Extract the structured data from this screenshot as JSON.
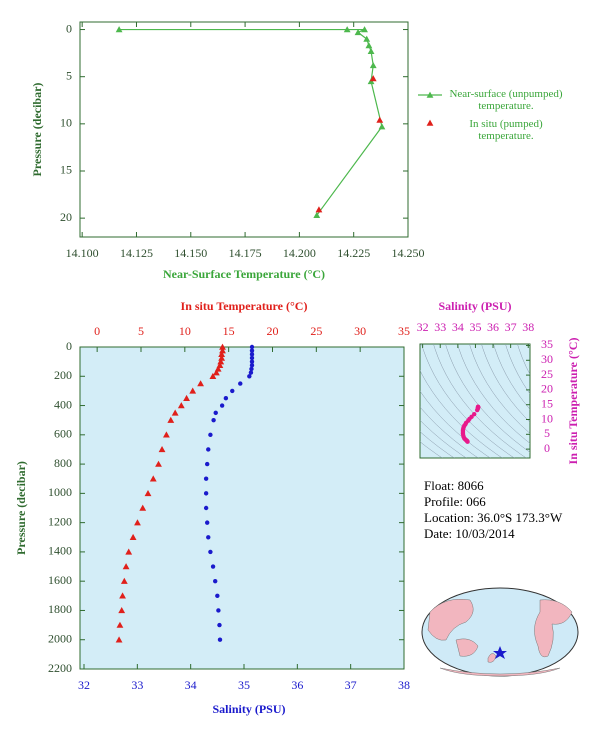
{
  "chart_data": [
    {
      "type": "line",
      "xlabel": "Near-Surface Temperature (°C)",
      "ylabel": "Pressure (decibar)",
      "xlim": [
        14.099,
        14.25
      ],
      "xticks": [
        {
          "value": 14.1,
          "label": "14.100"
        },
        {
          "value": 14.125,
          "label": "14.125"
        },
        {
          "value": 14.15,
          "label": "14.150"
        },
        {
          "value": 14.175,
          "label": "14.175"
        },
        {
          "value": 14.2,
          "label": "14.200"
        },
        {
          "value": 14.225,
          "label": "14.225"
        },
        {
          "value": 14.25,
          "label": "14.250"
        }
      ],
      "ylim": [
        22,
        -0.8
      ],
      "yticks": [
        0,
        5,
        10,
        15,
        20
      ],
      "series": [
        {
          "name": "Near-surface (unpumped) temperature.",
          "color": "#4db84d",
          "marker": "triangle",
          "line": true,
          "x": [
            14.117,
            14.222,
            14.23,
            14.227,
            14.231,
            14.232,
            14.233,
            14.234,
            14.233,
            14.238,
            14.208
          ],
          "y": [
            0,
            0,
            0,
            0.3,
            1,
            1.7,
            2.3,
            3.8,
            5.5,
            10.3,
            19.7
          ]
        },
        {
          "name": "In situ (pumped) temperature.",
          "color": "#e0201b",
          "marker": "triangle",
          "line": false,
          "x": [
            14.234,
            14.237,
            14.209
          ],
          "y": [
            5.2,
            9.6,
            19.1
          ]
        }
      ]
    },
    {
      "type": "profile",
      "ylabel": "Pressure (decibar)",
      "xlabel": "Salinity (PSU)",
      "x2label": "In situ Temperature (°C)",
      "ylim": [
        2200,
        0
      ],
      "yticks": [
        0,
        200,
        400,
        600,
        800,
        1000,
        1200,
        1400,
        1600,
        1800,
        2000,
        2200
      ],
      "xlim": [
        32,
        38
      ],
      "xticks": [
        32,
        33,
        34,
        35,
        36,
        37,
        38
      ],
      "x2lim": [
        -1.5,
        35
      ],
      "x2ticks": [
        0,
        5,
        10,
        15,
        20,
        25,
        30,
        35
      ],
      "background": "#d3edf7",
      "y": [
        0,
        25,
        50,
        75,
        100,
        125,
        150,
        175,
        200,
        250,
        300,
        350,
        400,
        450,
        500,
        600,
        700,
        800,
        900,
        1000,
        1100,
        1200,
        1300,
        1400,
        1500,
        1600,
        1700,
        1800,
        1900,
        2000
      ],
      "series": [
        {
          "color": "#e0201b",
          "marker": "triangle",
          "axis": "x2",
          "x": [
            14.3,
            14.3,
            14.2,
            14.2,
            14.1,
            14.0,
            13.8,
            13.6,
            13.2,
            11.8,
            10.9,
            10.2,
            9.6,
            8.9,
            8.4,
            7.9,
            7.4,
            7.0,
            6.4,
            5.8,
            5.2,
            4.6,
            4.1,
            3.6,
            3.3,
            3.1,
            2.9,
            2.8,
            2.6,
            2.5
          ]
        },
        {
          "color": "#1a1acc",
          "marker": "circle",
          "axis": "x",
          "x": [
            35.15,
            35.15,
            35.15,
            35.15,
            35.15,
            35.15,
            35.14,
            35.13,
            35.1,
            34.93,
            34.78,
            34.66,
            34.59,
            34.47,
            34.43,
            34.37,
            34.33,
            34.31,
            34.29,
            34.29,
            34.29,
            34.31,
            34.33,
            34.37,
            34.42,
            34.46,
            34.5,
            34.52,
            34.54,
            34.55
          ]
        }
      ]
    },
    {
      "type": "ts",
      "xlabel": "Salinity (PSU)",
      "ylabel": "In situ Temperature (°C)",
      "xlim": [
        31.85,
        38.1
      ],
      "xticks": [
        32,
        33,
        34,
        35,
        36,
        37,
        38
      ],
      "ylim": [
        -3,
        35.5
      ],
      "yticks": [
        0,
        5,
        10,
        15,
        20,
        25,
        30,
        35
      ],
      "color": "#e8198b"
    }
  ],
  "float_info": [
    "Float: 8066",
    "Profile: 066",
    "Location: 36.0°S 173.3°W",
    "Date: 10/03/2014"
  ]
}
